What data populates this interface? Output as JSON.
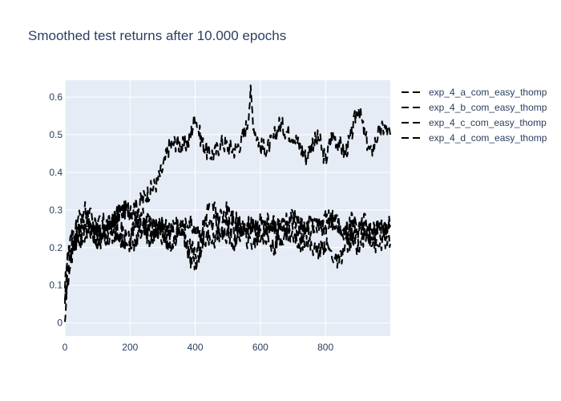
{
  "chart_data": {
    "type": "line",
    "title": "Smoothed test returns after 10.000 epochs",
    "xlabel": "",
    "ylabel": "",
    "xlim": [
      0,
      999
    ],
    "ylim": [
      -0.035,
      0.645
    ],
    "x_ticks": [
      0,
      200,
      400,
      600,
      800
    ],
    "y_ticks": [
      0,
      0.1,
      0.2,
      0.3,
      0.4,
      0.5,
      0.6
    ],
    "x_tick_labels": [
      "0",
      "200",
      "400",
      "600",
      "800"
    ],
    "y_tick_labels": [
      "0",
      "0.1",
      "0.2",
      "0.3",
      "0.4",
      "0.5",
      "0.6"
    ],
    "grid": true,
    "legend_position": "top-right",
    "line_color": "#000000",
    "line_dash": "dash",
    "plot_background": "#e5ecf6",
    "series": [
      {
        "name": "exp_4_a_com_easy_thomp",
        "x": [
          0,
          10,
          20,
          40,
          60,
          80,
          100,
          120,
          140,
          160,
          180,
          200,
          220,
          240,
          260,
          280,
          300,
          320,
          340,
          360,
          380,
          400,
          420,
          440,
          460,
          480,
          500,
          520,
          540,
          560,
          570,
          580,
          600,
          620,
          640,
          660,
          680,
          700,
          720,
          740,
          760,
          780,
          800,
          820,
          840,
          860,
          880,
          900,
          920,
          940,
          960,
          980,
          999
        ],
        "y": [
          0.04,
          0.15,
          0.2,
          0.24,
          0.27,
          0.25,
          0.26,
          0.27,
          0.26,
          0.28,
          0.3,
          0.3,
          0.31,
          0.33,
          0.35,
          0.37,
          0.41,
          0.47,
          0.48,
          0.47,
          0.48,
          0.55,
          0.48,
          0.45,
          0.45,
          0.48,
          0.47,
          0.46,
          0.48,
          0.53,
          0.61,
          0.52,
          0.47,
          0.46,
          0.49,
          0.53,
          0.51,
          0.5,
          0.47,
          0.44,
          0.48,
          0.49,
          0.43,
          0.5,
          0.48,
          0.45,
          0.5,
          0.58,
          0.5,
          0.45,
          0.5,
          0.52,
          0.5
        ]
      },
      {
        "name": "exp_4_b_com_easy_thomp",
        "x": [
          0,
          10,
          20,
          40,
          60,
          80,
          100,
          120,
          140,
          160,
          180,
          200,
          220,
          240,
          260,
          280,
          300,
          320,
          340,
          360,
          380,
          400,
          420,
          440,
          460,
          480,
          500,
          520,
          540,
          560,
          580,
          600,
          620,
          640,
          660,
          680,
          700,
          720,
          740,
          760,
          780,
          800,
          820,
          840,
          860,
          880,
          900,
          920,
          940,
          960,
          980,
          999
        ],
        "y": [
          0.07,
          0.19,
          0.22,
          0.27,
          0.3,
          0.28,
          0.24,
          0.25,
          0.27,
          0.29,
          0.3,
          0.3,
          0.26,
          0.28,
          0.27,
          0.25,
          0.26,
          0.25,
          0.27,
          0.24,
          0.27,
          0.25,
          0.24,
          0.3,
          0.3,
          0.28,
          0.31,
          0.28,
          0.27,
          0.25,
          0.26,
          0.24,
          0.27,
          0.25,
          0.26,
          0.24,
          0.29,
          0.26,
          0.25,
          0.27,
          0.26,
          0.25,
          0.28,
          0.26,
          0.24,
          0.27,
          0.26,
          0.25,
          0.24,
          0.26,
          0.25,
          0.27
        ]
      },
      {
        "name": "exp_4_c_com_easy_thomp",
        "x": [
          0,
          10,
          20,
          40,
          60,
          80,
          100,
          120,
          140,
          160,
          180,
          200,
          220,
          240,
          260,
          280,
          300,
          320,
          340,
          360,
          380,
          400,
          420,
          440,
          460,
          480,
          500,
          520,
          540,
          560,
          580,
          600,
          620,
          640,
          660,
          680,
          700,
          720,
          740,
          760,
          780,
          800,
          820,
          840,
          860,
          880,
          900,
          920,
          940,
          960,
          980,
          999
        ],
        "y": [
          0.1,
          0.17,
          0.2,
          0.23,
          0.24,
          0.26,
          0.22,
          0.24,
          0.25,
          0.26,
          0.24,
          0.22,
          0.27,
          0.26,
          0.24,
          0.25,
          0.26,
          0.24,
          0.23,
          0.26,
          0.2,
          0.19,
          0.22,
          0.28,
          0.26,
          0.25,
          0.26,
          0.24,
          0.25,
          0.26,
          0.25,
          0.27,
          0.24,
          0.26,
          0.26,
          0.28,
          0.27,
          0.25,
          0.24,
          0.26,
          0.25,
          0.3,
          0.27,
          0.26,
          0.24,
          0.23,
          0.25,
          0.27,
          0.23,
          0.25,
          0.24,
          0.26
        ]
      },
      {
        "name": "exp_4_d_com_easy_thomp",
        "x": [
          0,
          10,
          20,
          40,
          60,
          80,
          100,
          120,
          140,
          160,
          180,
          200,
          220,
          240,
          260,
          280,
          300,
          320,
          340,
          360,
          380,
          400,
          420,
          440,
          460,
          480,
          500,
          520,
          540,
          560,
          580,
          600,
          620,
          640,
          660,
          680,
          700,
          720,
          740,
          760,
          780,
          800,
          820,
          840,
          860,
          880,
          900,
          920,
          940,
          960,
          980,
          999
        ],
        "y": [
          0.0,
          0.12,
          0.18,
          0.21,
          0.22,
          0.24,
          0.2,
          0.23,
          0.22,
          0.24,
          0.21,
          0.2,
          0.22,
          0.25,
          0.22,
          0.24,
          0.23,
          0.2,
          0.22,
          0.25,
          0.17,
          0.15,
          0.2,
          0.23,
          0.22,
          0.24,
          0.23,
          0.21,
          0.24,
          0.22,
          0.21,
          0.23,
          0.22,
          0.2,
          0.22,
          0.24,
          0.23,
          0.21,
          0.22,
          0.2,
          0.19,
          0.21,
          0.18,
          0.16,
          0.2,
          0.22,
          0.2,
          0.23,
          0.22,
          0.2,
          0.22,
          0.21
        ]
      }
    ]
  }
}
